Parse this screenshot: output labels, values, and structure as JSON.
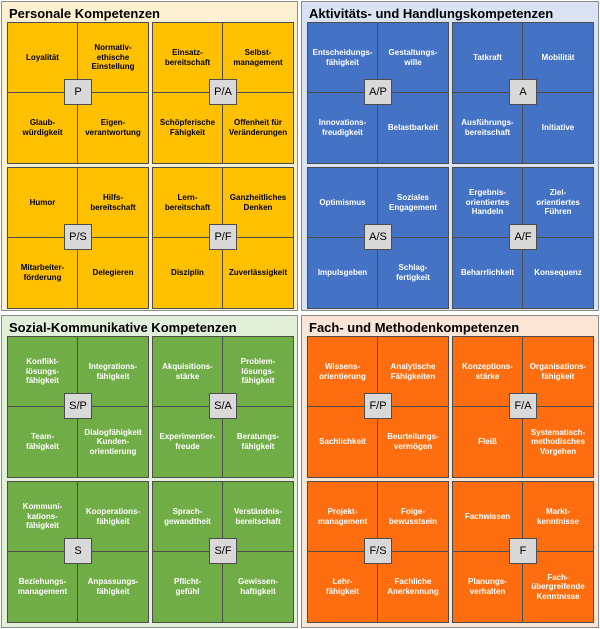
{
  "quadrants": [
    {
      "title": "Personale Kompetenzen",
      "bg": "#fdf1d2",
      "fill": "#ffc000",
      "text_color": "dark",
      "blocks": [
        {
          "code": "P",
          "cells": [
            "Loyalität",
            "Normativ-\nethische\nEinstellung",
            "Glaub-\nwürdigkeit",
            "Eigen-\nverantwortung"
          ]
        },
        {
          "code": "P/A",
          "cells": [
            "Einsatz-\nbereitschaft",
            "Selbst-\nmanagement",
            "Schöpferische\nFähigkeit",
            "Offenheit für\nVeränderungen"
          ]
        },
        {
          "code": "P/S",
          "cells": [
            "Humor",
            "Hilfs-\nbereitschaft",
            "Mitarbeiter-\nförderung",
            "Delegieren"
          ]
        },
        {
          "code": "P/F",
          "cells": [
            "Lern-\nbereitschaft",
            "Ganzheitliches\nDenken",
            "Disziplin",
            "Zuverlässigkeit"
          ]
        }
      ]
    },
    {
      "title": "Aktivitäts- und Handlungskompetenzen",
      "bg": "#dae3f3",
      "fill": "#4472c4",
      "text_color": "light",
      "blocks": [
        {
          "code": "A/P",
          "cells": [
            "Entscheidungs-\nfähigkeit",
            "Gestaltungs-\nwille",
            "Innovations-\nfreudigkeit",
            "Belastbarkeit"
          ]
        },
        {
          "code": "A",
          "cells": [
            "Tatkraft",
            "Mobilität",
            "Ausführungs-\nbereitschaft",
            "Initiative"
          ]
        },
        {
          "code": "A/S",
          "cells": [
            "Optimismus",
            "Soziales\nEngagement",
            "Impulsgeben",
            "Schlag-\nfertigkeit"
          ]
        },
        {
          "code": "A/F",
          "cells": [
            "Ergebnis-\norientiertes\nHandeln",
            "Ziel-\norientiertes\nFühren",
            "Beharrlichkeit",
            "Konsequenz"
          ]
        }
      ]
    },
    {
      "title": "Sozial-Kommunikative Kompetenzen",
      "bg": "#e2efd9",
      "fill": "#70ad47",
      "text_color": "light",
      "blocks": [
        {
          "code": "S/P",
          "cells": [
            "Konflikt-\nlösungs-\nfähigkeit",
            "Integrations-\nfähigkeit",
            "Team-\nfähigkeit",
            "Dialogfähigkeit\nKunden-\norientierung"
          ]
        },
        {
          "code": "S/A",
          "cells": [
            "Akquisitions-\nstärke",
            "Problem-\nlösungs-\nfähigkeit",
            "Experimentier-\nfreude",
            "Beratungs-\nfähigkeit"
          ]
        },
        {
          "code": "S",
          "cells": [
            "Kommuni-\nkations-\nfähigkeit",
            "Kooperations-\nfähigkeit",
            "Beziehungs-\nmanagement",
            "Anpassungs-\nfähigkeit"
          ]
        },
        {
          "code": "S/F",
          "cells": [
            "Sprach-\ngewandtheit",
            "Verständnis-\nbereitschaft",
            "Pflicht-\ngefühl",
            "Gewissen-\nhaftigkeit"
          ]
        }
      ]
    },
    {
      "title": "Fach- und Methodenkompetenzen",
      "bg": "#fbe5d6",
      "fill": "#fe6d10",
      "text_color": "light",
      "blocks": [
        {
          "code": "F/P",
          "cells": [
            "Wissens-\norientierung",
            "Analytische\nFähigkeiten",
            "Sachlichkeit",
            "Beurteilungs-\nvermögen"
          ]
        },
        {
          "code": "F/A",
          "cells": [
            "Konzeptions-\nstärke",
            "Organisations-\nfähigkeit",
            "Fleiß",
            "Systematisch-\nmethodisches\nVorgehen"
          ]
        },
        {
          "code": "F/S",
          "cells": [
            "Projekt-\nmanagement",
            "Folge-\nbewusstsein",
            "Lehr-\nfähigkeit",
            "Fachliche\nAnerkennung"
          ]
        },
        {
          "code": "F",
          "cells": [
            "Fachwissen",
            "Markt-\nkenntnisse",
            "Planungs-\nverhalten",
            "Fach-\nübergreifende\nKenntnisse"
          ]
        }
      ]
    }
  ]
}
